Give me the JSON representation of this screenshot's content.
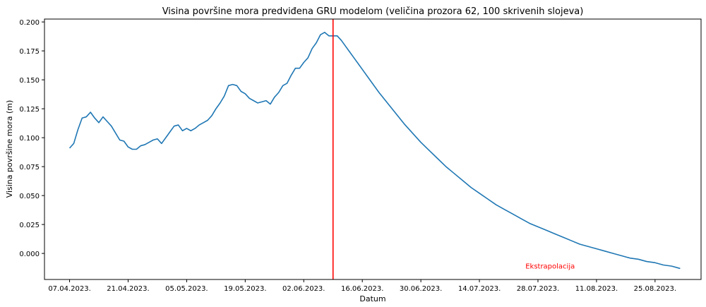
{
  "chart_data": {
    "type": "line",
    "title": "Visina površine mora predviđena GRU modelom (veličina prozora 62, 100 skrivenih slojeva)",
    "xlabel": "Datum",
    "ylabel": "Visina površine mora (m)",
    "xlim": [
      "2023-04-01",
      "2023-09-05"
    ],
    "ylim": [
      -0.0225,
      0.2025
    ],
    "x_ticks": [
      "2023-04-07",
      "2023-04-21",
      "2023-05-05",
      "2023-05-19",
      "2023-06-02",
      "2023-06-16",
      "2023-06-30",
      "2023-07-14",
      "2023-07-28",
      "2023-08-11",
      "2023-08-25"
    ],
    "x_tick_labels": [
      "07.04.2023.",
      "21.04.2023.",
      "05.05.2023.",
      "19.05.2023.",
      "02.06.2023.",
      "16.06.2023.",
      "30.06.2023.",
      "14.07.2023.",
      "28.07.2023.",
      "11.08.2023.",
      "25.08.2023."
    ],
    "y_ticks": [
      0.0,
      0.025,
      0.05,
      0.075,
      0.1,
      0.125,
      0.15,
      0.175,
      0.2
    ],
    "y_tick_labels": [
      "0.000",
      "0.025",
      "0.050",
      "0.075",
      "0.100",
      "0.125",
      "0.150",
      "0.175",
      "0.200"
    ],
    "grid": false,
    "line_color": "#1f77b4",
    "series": [
      {
        "x": [
          "2023-04-07",
          "2023-04-08",
          "2023-04-09",
          "2023-04-10",
          "2023-04-11",
          "2023-04-12",
          "2023-04-13",
          "2023-04-14",
          "2023-04-15",
          "2023-04-16",
          "2023-04-17",
          "2023-04-18",
          "2023-04-19",
          "2023-04-20",
          "2023-04-21",
          "2023-04-22",
          "2023-04-23",
          "2023-04-24",
          "2023-04-25",
          "2023-04-26",
          "2023-04-27",
          "2023-04-28",
          "2023-04-29",
          "2023-04-30",
          "2023-05-01",
          "2023-05-02",
          "2023-05-03",
          "2023-05-04",
          "2023-05-05",
          "2023-05-06",
          "2023-05-07",
          "2023-05-08",
          "2023-05-09",
          "2023-05-10",
          "2023-05-11",
          "2023-05-12",
          "2023-05-13",
          "2023-05-14",
          "2023-05-15",
          "2023-05-16",
          "2023-05-17",
          "2023-05-18",
          "2023-05-19",
          "2023-05-20",
          "2023-05-21",
          "2023-05-22",
          "2023-05-23",
          "2023-05-24",
          "2023-05-25",
          "2023-05-26",
          "2023-05-27",
          "2023-05-28",
          "2023-05-29",
          "2023-05-30",
          "2023-05-31",
          "2023-06-01",
          "2023-06-02",
          "2023-06-03",
          "2023-06-04",
          "2023-06-05",
          "2023-06-06",
          "2023-06-07",
          "2023-06-08",
          "2023-06-09",
          "2023-06-10",
          "2023-06-11",
          "2023-06-12",
          "2023-06-13",
          "2023-06-14",
          "2023-06-16",
          "2023-06-18",
          "2023-06-20",
          "2023-06-22",
          "2023-06-24",
          "2023-06-26",
          "2023-06-28",
          "2023-06-30",
          "2023-07-02",
          "2023-07-04",
          "2023-07-06",
          "2023-07-08",
          "2023-07-10",
          "2023-07-12",
          "2023-07-14",
          "2023-07-16",
          "2023-07-18",
          "2023-07-20",
          "2023-07-22",
          "2023-07-24",
          "2023-07-26",
          "2023-07-28",
          "2023-07-30",
          "2023-08-01",
          "2023-08-03",
          "2023-08-05",
          "2023-08-07",
          "2023-08-09",
          "2023-08-11",
          "2023-08-13",
          "2023-08-15",
          "2023-08-17",
          "2023-08-19",
          "2023-08-21",
          "2023-08-23",
          "2023-08-25",
          "2023-08-27",
          "2023-08-29",
          "2023-08-31"
        ],
        "y": [
          0.091,
          0.095,
          0.107,
          0.117,
          0.118,
          0.122,
          0.117,
          0.113,
          0.118,
          0.114,
          0.11,
          0.104,
          0.098,
          0.097,
          0.092,
          0.09,
          0.09,
          0.093,
          0.094,
          0.096,
          0.098,
          0.099,
          0.095,
          0.1,
          0.105,
          0.11,
          0.111,
          0.106,
          0.108,
          0.106,
          0.108,
          0.111,
          0.113,
          0.115,
          0.119,
          0.125,
          0.13,
          0.136,
          0.145,
          0.146,
          0.145,
          0.14,
          0.138,
          0.134,
          0.132,
          0.13,
          0.131,
          0.132,
          0.129,
          0.135,
          0.139,
          0.145,
          0.147,
          0.154,
          0.16,
          0.16,
          0.165,
          0.169,
          0.177,
          0.182,
          0.189,
          0.191,
          0.188,
          0.188,
          0.188,
          0.184,
          0.179,
          0.174,
          0.169,
          0.159,
          0.149,
          0.139,
          0.13,
          0.121,
          0.112,
          0.104,
          0.096,
          0.089,
          0.082,
          0.075,
          0.069,
          0.063,
          0.057,
          0.052,
          0.047,
          0.042,
          0.038,
          0.034,
          0.03,
          0.026,
          0.023,
          0.02,
          0.017,
          0.014,
          0.011,
          0.008,
          0.006,
          0.004,
          0.002,
          0.0,
          -0.002,
          -0.004,
          -0.005,
          -0.007,
          -0.008,
          -0.01,
          -0.011,
          -0.013
        ]
      }
    ],
    "vertical_line": {
      "x": "2023-06-09",
      "color": "#ff0000"
    },
    "annotations": [
      {
        "text": "Ekstrapolacija",
        "x": "2023-07-25",
        "y": -0.0105,
        "color": "#ff0000"
      }
    ]
  }
}
